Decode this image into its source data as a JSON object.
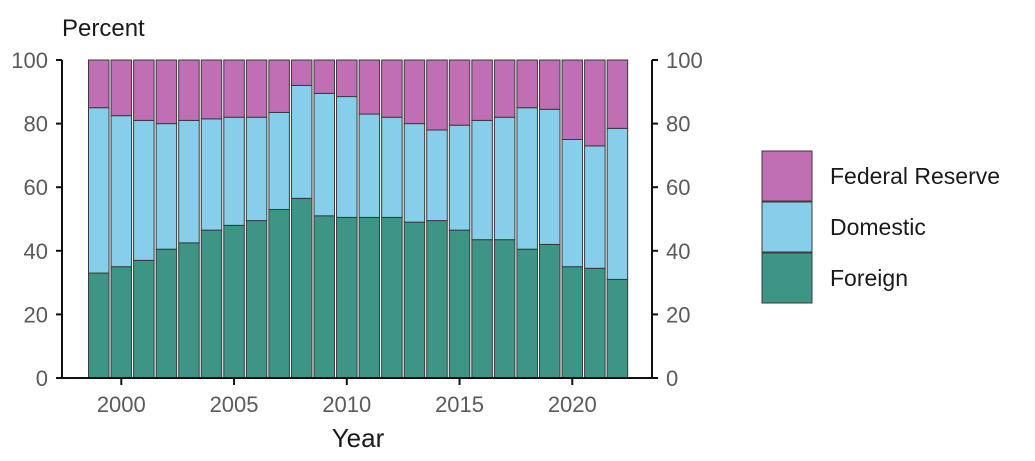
{
  "chart_data": {
    "type": "bar",
    "stacked": true,
    "x": [
      1999,
      2000,
      2001,
      2002,
      2003,
      2004,
      2005,
      2006,
      2007,
      2008,
      2009,
      2010,
      2011,
      2012,
      2013,
      2014,
      2015,
      2016,
      2017,
      2018,
      2019,
      2020,
      2021,
      2022
    ],
    "series": [
      {
        "name": "Foreign",
        "color": "#3f9585",
        "values": [
          33,
          35,
          37,
          40.5,
          42.5,
          46.5,
          48,
          49.5,
          53,
          56.5,
          51,
          50.5,
          50.5,
          50.5,
          49,
          49.5,
          46.5,
          43.5,
          43.5,
          40.5,
          42,
          35,
          34.5,
          31
        ]
      },
      {
        "name": "Domestic",
        "color": "#87ceeb",
        "values": [
          52,
          47.5,
          44,
          39.5,
          38.5,
          35,
          34,
          32.5,
          30.5,
          35.5,
          38.5,
          38,
          32.5,
          31.5,
          31,
          28.5,
          33,
          37.5,
          38.5,
          44.5,
          42.5,
          40,
          38.5,
          47.5
        ]
      },
      {
        "name": "Federal Reserve",
        "color": "#c06fb5",
        "values": [
          15,
          17.5,
          19,
          20,
          19,
          18.5,
          18,
          18,
          16.5,
          8,
          10.5,
          11.5,
          17,
          18,
          20,
          22,
          20.5,
          19,
          18,
          15,
          15.5,
          25,
          27,
          21.5
        ]
      }
    ],
    "xticks": [
      2000,
      2005,
      2010,
      2015,
      2020
    ],
    "yticks": [
      0,
      20,
      40,
      60,
      80,
      100
    ],
    "ylim": [
      0,
      100
    ],
    "ylabel": "Percent",
    "xlabel": "Year",
    "legend_position": "right"
  }
}
